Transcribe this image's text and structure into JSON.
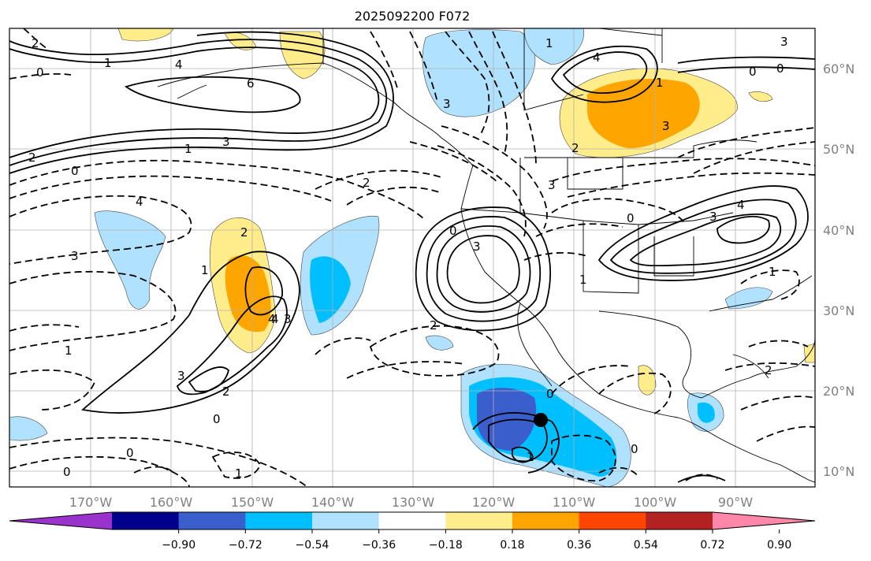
{
  "title": "2025092200 F072",
  "map": {
    "lon_ticks": [
      "170°W",
      "160°W",
      "150°W",
      "140°W",
      "130°W",
      "120°W",
      "110°W",
      "100°W",
      "90°W"
    ],
    "lat_ticks": [
      "60°N",
      "50°N",
      "40°N",
      "30°N",
      "20°N",
      "10°N"
    ],
    "grid": true,
    "marker": "storm-center-dot"
  },
  "contour_labels": [
    "2",
    "1",
    "0",
    "4",
    "6",
    "3",
    "2",
    "1",
    "0",
    "4",
    "3",
    "2",
    "1",
    "0",
    "3",
    "4",
    "3",
    "2",
    "1",
    "2",
    "3",
    "4",
    "3",
    "0",
    "2",
    "1",
    "3",
    "0",
    "4",
    "3",
    "2",
    "1",
    "0",
    "1",
    "0",
    "1",
    "0",
    "2",
    "1",
    "3",
    "0",
    "1",
    "0",
    "3",
    "4",
    "0"
  ],
  "colorbar": {
    "colors": [
      "#9933cc",
      "#00008b",
      "#3a5fcd",
      "#00bfff",
      "#b0e2ff",
      "#ffffff",
      "#ffec8b",
      "#ffa500",
      "#ff4500",
      "#b22222",
      "#ff88aa"
    ],
    "labels": [
      "−0.90",
      "−0.72",
      "−0.54",
      "−0.36",
      "−0.18",
      "0.18",
      "0.36",
      "0.54",
      "0.72",
      "0.90"
    ]
  }
}
